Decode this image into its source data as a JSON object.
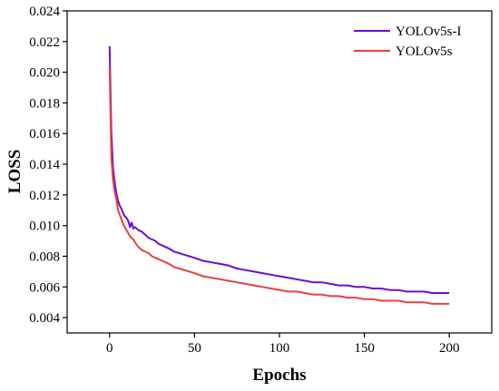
{
  "chart_data": {
    "type": "line",
    "title": "",
    "xlabel": "Epochs",
    "ylabel": "LOSS",
    "xlim": [
      -25,
      225
    ],
    "ylim": [
      0.003,
      0.024
    ],
    "x_ticks": [
      0,
      50,
      100,
      150,
      200
    ],
    "x_tick_labels": [
      "0",
      "50",
      "100",
      "150",
      "200"
    ],
    "y_ticks": [
      0.004,
      0.006,
      0.008,
      0.01,
      0.012,
      0.014,
      0.016,
      0.018,
      0.02,
      0.022,
      0.024
    ],
    "y_tick_labels": [
      "0.004",
      "0.006",
      "0.008",
      "0.010",
      "0.012",
      "0.014",
      "0.016",
      "0.018",
      "0.020",
      "0.022",
      "0.024"
    ],
    "grid": false,
    "legend_position": "top-right",
    "series": [
      {
        "name": "YOLOv5s-I",
        "color": "#6a0dd6",
        "x": [
          0,
          1,
          2,
          3,
          4,
          5,
          6,
          7,
          8,
          9,
          10,
          11,
          12,
          13,
          14,
          15,
          17,
          19,
          21,
          23,
          25,
          27,
          29,
          31,
          33,
          35,
          38,
          41,
          44,
          47,
          50,
          55,
          60,
          65,
          70,
          75,
          80,
          85,
          90,
          95,
          100,
          105,
          110,
          115,
          120,
          125,
          130,
          135,
          140,
          145,
          150,
          155,
          160,
          165,
          170,
          175,
          180,
          185,
          190,
          195,
          200
        ],
        "values": [
          0.0217,
          0.0162,
          0.0138,
          0.0128,
          0.0121,
          0.0116,
          0.0113,
          0.0111,
          0.0108,
          0.0106,
          0.0105,
          0.0103,
          0.0099,
          0.0102,
          0.0098,
          0.0099,
          0.0097,
          0.0096,
          0.0094,
          0.0092,
          0.0091,
          0.009,
          0.0088,
          0.0087,
          0.0086,
          0.0085,
          0.0083,
          0.0082,
          0.0081,
          0.008,
          0.0079,
          0.0077,
          0.0076,
          0.0075,
          0.0074,
          0.0072,
          0.0071,
          0.007,
          0.0069,
          0.0068,
          0.0067,
          0.0066,
          0.0065,
          0.0064,
          0.0063,
          0.0063,
          0.0062,
          0.0061,
          0.0061,
          0.006,
          0.006,
          0.0059,
          0.0059,
          0.0058,
          0.0058,
          0.0057,
          0.0057,
          0.0057,
          0.0056,
          0.0056,
          0.0056
        ]
      },
      {
        "name": "YOLOv5s",
        "color": "#e8403d",
        "x": [
          0,
          1,
          2,
          3,
          4,
          5,
          6,
          7,
          8,
          9,
          10,
          11,
          12,
          13,
          14,
          15,
          17,
          19,
          21,
          23,
          25,
          27,
          29,
          31,
          33,
          35,
          38,
          41,
          44,
          47,
          50,
          55,
          60,
          65,
          70,
          75,
          80,
          85,
          90,
          95,
          100,
          105,
          110,
          115,
          120,
          125,
          130,
          135,
          140,
          145,
          150,
          155,
          160,
          165,
          170,
          175,
          180,
          185,
          190,
          195,
          200
        ],
        "values": [
          0.0203,
          0.0145,
          0.013,
          0.0122,
          0.0117,
          0.011,
          0.0107,
          0.0104,
          0.0101,
          0.0099,
          0.0097,
          0.0095,
          0.0093,
          0.0092,
          0.0091,
          0.0089,
          0.0086,
          0.0084,
          0.0083,
          0.0082,
          0.008,
          0.0079,
          0.0078,
          0.0077,
          0.0076,
          0.0075,
          0.0073,
          0.0072,
          0.0071,
          0.007,
          0.0069,
          0.0067,
          0.0066,
          0.0065,
          0.0064,
          0.0063,
          0.0062,
          0.0061,
          0.006,
          0.0059,
          0.0058,
          0.0057,
          0.0057,
          0.0056,
          0.0055,
          0.0055,
          0.0054,
          0.0054,
          0.0053,
          0.0053,
          0.0052,
          0.0052,
          0.0051,
          0.0051,
          0.0051,
          0.005,
          0.005,
          0.005,
          0.0049,
          0.0049,
          0.0049
        ]
      }
    ]
  }
}
